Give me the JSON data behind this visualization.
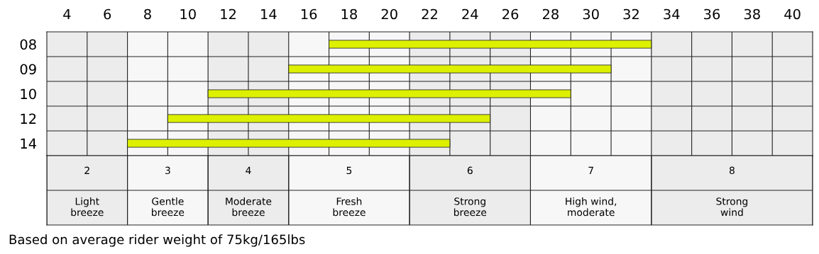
{
  "chart_data": {
    "type": "bar",
    "orientation": "horizontal",
    "categories": [
      "08",
      "09",
      "10",
      "12",
      "14"
    ],
    "base": [
      17,
      15,
      11,
      9,
      7
    ],
    "values": [
      16,
      16,
      18,
      16,
      16
    ],
    "color": "#dcf000",
    "xlim": [
      3,
      41
    ],
    "xticks": [
      4,
      6,
      8,
      10,
      12,
      14,
      16,
      18,
      20,
      22,
      24,
      26,
      28,
      30,
      32,
      34,
      36,
      38,
      40
    ],
    "grid": true,
    "bands": [
      {
        "axis": "x",
        "from": 3,
        "to": 7,
        "label": "2",
        "color": "#ececec"
      },
      {
        "axis": "x",
        "from": 7,
        "to": 11,
        "label": "3",
        "color": "#f7f7f7"
      },
      {
        "axis": "x",
        "from": 11,
        "to": 15,
        "label": "4",
        "color": "#ececec"
      },
      {
        "axis": "x",
        "from": 15,
        "to": 21,
        "label": "5",
        "color": "#f7f7f7"
      },
      {
        "axis": "x",
        "from": 21,
        "to": 27,
        "label": "6",
        "color": "#ececec"
      },
      {
        "axis": "x",
        "from": 27,
        "to": 33,
        "label": "7",
        "color": "#f7f7f7"
      },
      {
        "axis": "x",
        "from": 33,
        "to": 41,
        "label": "8",
        "color": "#ececec"
      }
    ],
    "annotations": [
      "Light\nbreeze",
      "Gentle\nbreeze",
      "Moderate\nbreeze",
      "Fresh\nbreeze",
      "Strong\nbreeze",
      "High wind,\nmoderate",
      "Strong\nwind",
      "Based on average rider weight of 75kg/165lbs"
    ]
  }
}
